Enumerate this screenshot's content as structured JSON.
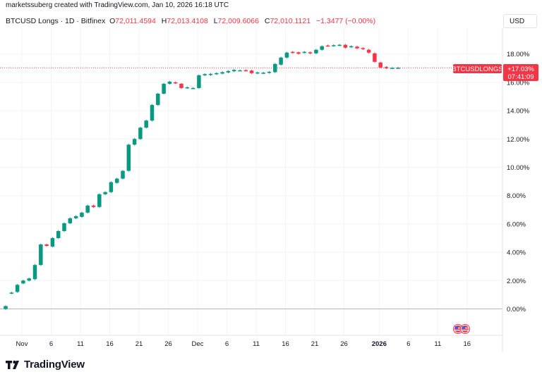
{
  "header": {
    "attribution": "marketssuberg created with TradingView.com, Jan 10, 2026 16:18 UTC",
    "symbol_line": "BTCUSD Longs · 1D · Bitfinex",
    "open_label": "O",
    "open_value": "72,011.4594",
    "high_label": "H",
    "high_value": "72,013.4108",
    "low_label": "L",
    "low_value": "72,009.6066",
    "close_label": "C",
    "close_value": "72,010.1121",
    "change_value": "−1.3477 (−0.00%)"
  },
  "currency_button": "USD",
  "price_tag": {
    "name": "BTCUSDLONGS",
    "value": "+17.03%",
    "countdown": "07:41:09"
  },
  "colors": {
    "up": "#089981",
    "down": "#f23645",
    "grid": "#f0f3fa",
    "text": "#131722"
  },
  "branding": {
    "logo_text": "TradingView",
    "logo_icon": "tradingview-logo-icon"
  },
  "event_icon": "us-flag-icon",
  "chart_data": {
    "type": "candlestick",
    "y_unit": "%",
    "ylim": [
      -1.0,
      19.5
    ],
    "y_ticks": [
      "0.00%",
      "2.00%",
      "4.00%",
      "6.00%",
      "8.00%",
      "10.00%",
      "12.00%",
      "14.00%",
      "16.00%",
      "18.00%"
    ],
    "y_tick_values": [
      0,
      2,
      4,
      6,
      8,
      10,
      12,
      14,
      16,
      18
    ],
    "x_ticks": [
      {
        "label": "Nov",
        "day_index": 3,
        "bold": false
      },
      {
        "label": "6",
        "day_index": 8,
        "bold": false
      },
      {
        "label": "11",
        "day_index": 13,
        "bold": false
      },
      {
        "label": "16",
        "day_index": 18,
        "bold": false
      },
      {
        "label": "21",
        "day_index": 23,
        "bold": false
      },
      {
        "label": "26",
        "day_index": 28,
        "bold": false
      },
      {
        "label": "Dec",
        "day_index": 33,
        "bold": false
      },
      {
        "label": "6",
        "day_index": 38,
        "bold": false
      },
      {
        "label": "11",
        "day_index": 43,
        "bold": false
      },
      {
        "label": "16",
        "day_index": 48,
        "bold": false
      },
      {
        "label": "21",
        "day_index": 53,
        "bold": false
      },
      {
        "label": "26",
        "day_index": 58,
        "bold": false
      },
      {
        "label": "2026",
        "day_index": 64,
        "bold": true
      },
      {
        "label": "6",
        "day_index": 69,
        "bold": false
      },
      {
        "label": "11",
        "day_index": 74,
        "bold": false
      },
      {
        "label": "16",
        "day_index": 79,
        "bold": false
      }
    ],
    "last_value": 17.03,
    "candles": [
      {
        "o": 0.0,
        "c": 0.2
      },
      {
        "o": 1.1,
        "c": 1.15
      },
      {
        "o": 1.2,
        "c": 1.7
      },
      {
        "o": 1.8,
        "c": 2.0
      },
      {
        "o": 2.0,
        "c": 2.15
      },
      {
        "o": 2.1,
        "c": 3.1
      },
      {
        "o": 3.1,
        "c": 4.55
      },
      {
        "o": 4.55,
        "c": 4.45
      },
      {
        "o": 4.4,
        "c": 5.0
      },
      {
        "o": 5.0,
        "c": 5.5
      },
      {
        "o": 5.5,
        "c": 6.05
      },
      {
        "o": 6.05,
        "c": 6.4
      },
      {
        "o": 6.4,
        "c": 6.55
      },
      {
        "o": 6.5,
        "c": 6.8
      },
      {
        "o": 6.8,
        "c": 7.3
      },
      {
        "o": 7.3,
        "c": 7.2
      },
      {
        "o": 7.2,
        "c": 8.1
      },
      {
        "o": 8.1,
        "c": 8.25
      },
      {
        "o": 8.25,
        "c": 8.95
      },
      {
        "o": 8.9,
        "c": 9.2
      },
      {
        "o": 9.2,
        "c": 9.75
      },
      {
        "o": 9.75,
        "c": 11.6
      },
      {
        "o": 11.6,
        "c": 12.0
      },
      {
        "o": 12.0,
        "c": 12.8
      },
      {
        "o": 12.8,
        "c": 13.3
      },
      {
        "o": 13.3,
        "c": 14.4
      },
      {
        "o": 14.4,
        "c": 15.2
      },
      {
        "o": 15.2,
        "c": 15.9
      },
      {
        "o": 15.9,
        "c": 16.05
      },
      {
        "o": 16.0,
        "c": 15.95
      },
      {
        "o": 15.9,
        "c": 15.6
      },
      {
        "o": 15.6,
        "c": 15.65
      },
      {
        "o": 15.6,
        "c": 15.6
      },
      {
        "o": 15.6,
        "c": 16.5
      },
      {
        "o": 16.5,
        "c": 16.58
      },
      {
        "o": 16.52,
        "c": 16.6
      },
      {
        "o": 16.58,
        "c": 16.65
      },
      {
        "o": 16.62,
        "c": 16.72
      },
      {
        "o": 16.7,
        "c": 16.8
      },
      {
        "o": 16.78,
        "c": 16.88
      },
      {
        "o": 16.85,
        "c": 16.85
      },
      {
        "o": 16.86,
        "c": 16.82
      },
      {
        "o": 16.83,
        "c": 16.65
      },
      {
        "o": 16.63,
        "c": 16.7
      },
      {
        "o": 16.66,
        "c": 16.68
      },
      {
        "o": 16.68,
        "c": 16.74
      },
      {
        "o": 16.72,
        "c": 17.3
      },
      {
        "o": 17.25,
        "c": 17.75
      },
      {
        "o": 17.75,
        "c": 18.1
      },
      {
        "o": 18.15,
        "c": 18.1
      },
      {
        "o": 18.12,
        "c": 18.02
      },
      {
        "o": 18.1,
        "c": 18.15
      },
      {
        "o": 18.12,
        "c": 18.05
      },
      {
        "o": 18.05,
        "c": 18.3
      },
      {
        "o": 18.3,
        "c": 18.55
      },
      {
        "o": 18.6,
        "c": 18.58
      },
      {
        "o": 18.58,
        "c": 18.62
      },
      {
        "o": 18.62,
        "c": 18.65
      },
      {
        "o": 18.65,
        "c": 18.45
      },
      {
        "o": 18.5,
        "c": 18.55
      },
      {
        "o": 18.52,
        "c": 18.4
      },
      {
        "o": 18.42,
        "c": 18.35
      },
      {
        "o": 18.3,
        "c": 18.1
      },
      {
        "o": 18.05,
        "c": 17.45
      },
      {
        "o": 17.4,
        "c": 17.05
      },
      {
        "o": 17.08,
        "c": 17.0
      },
      {
        "o": 17.02,
        "c": 17.02
      },
      {
        "o": 17.03,
        "c": 17.03
      }
    ],
    "grid": true
  }
}
